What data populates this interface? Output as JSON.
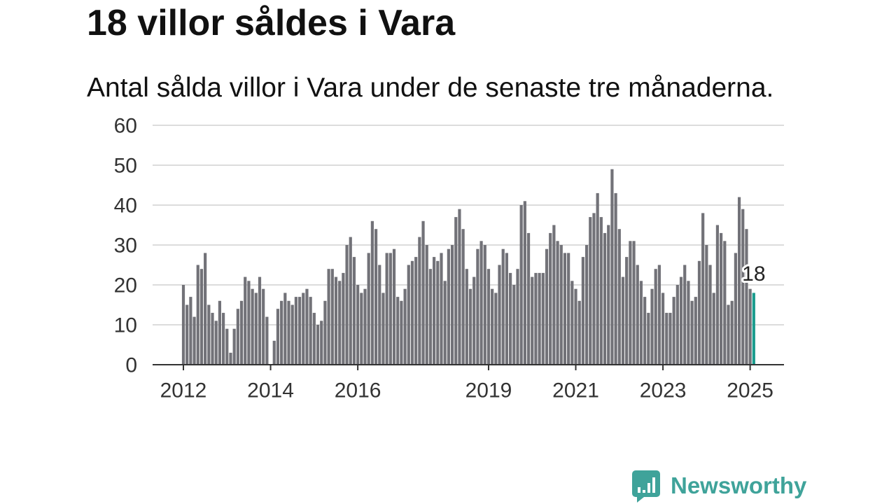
{
  "chart_data": {
    "type": "bar",
    "title": "18 villor såldes i Vara",
    "subtitle": "Antal sålda villor i Vara under de senaste tre månaderna.",
    "categories": [
      "2012-01",
      "2012-02",
      "2012-03",
      "2012-04",
      "2012-05",
      "2012-06",
      "2012-07",
      "2012-08",
      "2012-09",
      "2012-10",
      "2012-11",
      "2012-12",
      "2013-01",
      "2013-02",
      "2013-03",
      "2013-04",
      "2013-05",
      "2013-06",
      "2013-07",
      "2013-08",
      "2013-09",
      "2013-10",
      "2013-11",
      "2013-12",
      "2014-01",
      "2014-02",
      "2014-03",
      "2014-04",
      "2014-05",
      "2014-06",
      "2014-07",
      "2014-08",
      "2014-09",
      "2014-10",
      "2014-11",
      "2014-12",
      "2015-01",
      "2015-02",
      "2015-03",
      "2015-04",
      "2015-05",
      "2015-06",
      "2015-07",
      "2015-08",
      "2015-09",
      "2015-10",
      "2015-11",
      "2015-12",
      "2016-01",
      "2016-02",
      "2016-03",
      "2016-04",
      "2016-05",
      "2016-06",
      "2016-07",
      "2016-08",
      "2016-09",
      "2016-10",
      "2016-11",
      "2016-12",
      "2017-01",
      "2017-02",
      "2017-03",
      "2017-04",
      "2017-05",
      "2017-06",
      "2017-07",
      "2017-08",
      "2017-09",
      "2017-10",
      "2017-11",
      "2017-12",
      "2018-01",
      "2018-02",
      "2018-03",
      "2018-04",
      "2018-05",
      "2018-06",
      "2018-07",
      "2018-08",
      "2018-09",
      "2018-10",
      "2018-11",
      "2018-12",
      "2019-01",
      "2019-02",
      "2019-03",
      "2019-04",
      "2019-05",
      "2019-06",
      "2019-07",
      "2019-08",
      "2019-09",
      "2019-10",
      "2019-11",
      "2019-12",
      "2020-01",
      "2020-02",
      "2020-03",
      "2020-04",
      "2020-05",
      "2020-06",
      "2020-07",
      "2020-08",
      "2020-09",
      "2020-10",
      "2020-11",
      "2020-12",
      "2021-01",
      "2021-02",
      "2021-03",
      "2021-04",
      "2021-05",
      "2021-06",
      "2021-07",
      "2021-08",
      "2021-09",
      "2021-10",
      "2021-11",
      "2021-12",
      "2022-01",
      "2022-02",
      "2022-03",
      "2022-04",
      "2022-05",
      "2022-06",
      "2022-07",
      "2022-08",
      "2022-09",
      "2022-10",
      "2022-11",
      "2022-12",
      "2023-01",
      "2023-02",
      "2023-03",
      "2023-04",
      "2023-05",
      "2023-06",
      "2023-07",
      "2023-08",
      "2023-09",
      "2023-10",
      "2023-11",
      "2023-12",
      "2024-01",
      "2024-02",
      "2024-03",
      "2024-04",
      "2024-05",
      "2024-06",
      "2024-07",
      "2024-08",
      "2024-09",
      "2024-10",
      "2024-11",
      "2024-12",
      "2025-01",
      "2025-02"
    ],
    "values": [
      20,
      15,
      17,
      12,
      25,
      24,
      28,
      15,
      13,
      11,
      16,
      13,
      9,
      3,
      9,
      14,
      16,
      22,
      21,
      19,
      18,
      22,
      19,
      12,
      0,
      6,
      14,
      16,
      18,
      16,
      15,
      17,
      17,
      18,
      19,
      17,
      13,
      10,
      11,
      16,
      24,
      24,
      22,
      21,
      23,
      30,
      32,
      27,
      20,
      18,
      19,
      28,
      36,
      34,
      25,
      18,
      28,
      28,
      29,
      17,
      16,
      19,
      25,
      26,
      27,
      32,
      36,
      30,
      24,
      27,
      26,
      28,
      21,
      29,
      30,
      37,
      39,
      34,
      24,
      19,
      22,
      29,
      31,
      30,
      24,
      19,
      18,
      25,
      29,
      28,
      23,
      20,
      24,
      40,
      41,
      33,
      22,
      23,
      23,
      23,
      29,
      33,
      35,
      31,
      30,
      28,
      28,
      21,
      19,
      16,
      27,
      30,
      37,
      38,
      43,
      37,
      33,
      35,
      49,
      43,
      34,
      22,
      27,
      31,
      31,
      25,
      21,
      17,
      13,
      19,
      24,
      25,
      18,
      13,
      13,
      17,
      20,
      22,
      25,
      21,
      16,
      17,
      26,
      38,
      30,
      25,
      18,
      35,
      33,
      31,
      15,
      16,
      28,
      42,
      39,
      34,
      19,
      18
    ],
    "ylim": [
      0,
      60
    ],
    "y_ticks": [
      0,
      10,
      20,
      30,
      40,
      50,
      60
    ],
    "x_ticks": [
      "2012",
      "2014",
      "2016",
      "2019",
      "2021",
      "2023",
      "2025"
    ],
    "grid": true,
    "legend": false,
    "highlight": {
      "category": "2025-02",
      "value_label": "18"
    },
    "colors": {
      "bars": "#727278",
      "highlight": "#1a9c8e",
      "grid": "#dcdcdc",
      "axis": "#333333",
      "tick_labels": "#333333",
      "annotation": "#222222"
    }
  },
  "brand": {
    "name": "Newsworthy",
    "icon": "newsworthy-logo-icon",
    "color": "#3fa39a"
  }
}
